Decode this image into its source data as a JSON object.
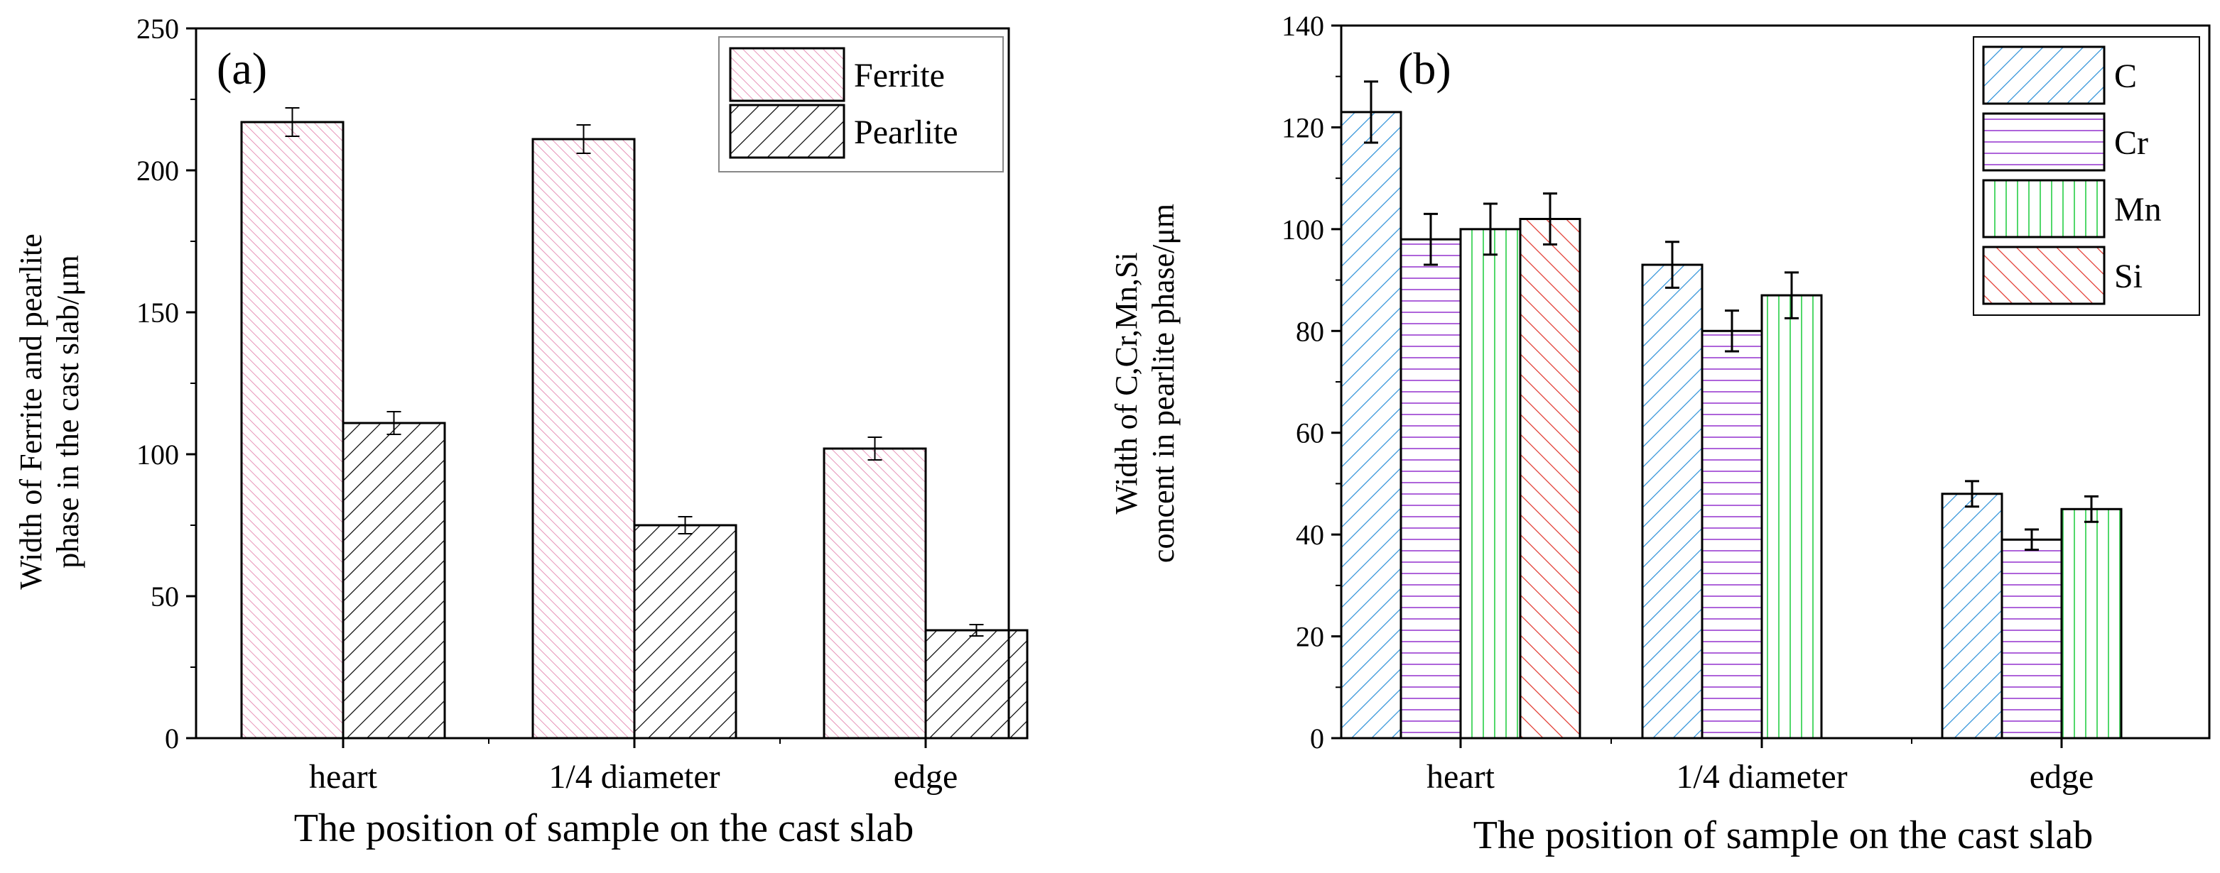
{
  "chart_data": [
    {
      "type": "bar",
      "panel_label": "(a)",
      "categories": [
        "heart",
        "1/4 diameter",
        "edge"
      ],
      "series": [
        {
          "name": "Ferrite",
          "values": [
            217,
            211,
            102
          ],
          "errors": [
            5,
            5,
            4
          ],
          "color": "#e27aa8",
          "pattern": "dense-diagonal-hatch"
        },
        {
          "name": "Pearlite",
          "values": [
            111,
            75,
            38
          ],
          "errors": [
            4,
            3,
            2
          ],
          "color": "#000000",
          "pattern": "diagonal-hatch"
        }
      ],
      "xlabel": "The position of sample on the cast slab",
      "ylabel_lines": [
        "Width of Ferrite and pearlite",
        "phase in the cast slab/μm"
      ],
      "ylim": [
        0,
        250
      ],
      "yticks": [
        0,
        50,
        100,
        150,
        200,
        250
      ],
      "legend": "top-right"
    },
    {
      "type": "bar",
      "panel_label": "(b)",
      "categories": [
        "heart",
        "1/4 diameter",
        "edge"
      ],
      "series": [
        {
          "name": "C",
          "values": [
            123,
            93,
            48
          ],
          "errors": [
            6,
            4.5,
            2.5
          ],
          "color": "#2a8fd8",
          "pattern": "diagonal-hatch"
        },
        {
          "name": "Cr",
          "values": [
            98,
            80,
            39
          ],
          "errors": [
            5,
            4,
            2
          ],
          "color": "#a552d6",
          "pattern": "horizontal-lines"
        },
        {
          "name": "Mn",
          "values": [
            100,
            87,
            45
          ],
          "errors": [
            5,
            4.5,
            2.5
          ],
          "color": "#3fd45a",
          "pattern": "vertical-lines"
        },
        {
          "name": "Si",
          "values": [
            102,
            null,
            null
          ],
          "errors": [
            5,
            null,
            null
          ],
          "color": "#e0342a",
          "pattern": "diagonal-hatch-reverse"
        }
      ],
      "xlabel": "The position of sample on the cast slab",
      "ylabel_lines": [
        "Width of C,Cr,Mn,Si",
        "concent in pearlite phase/μm"
      ],
      "ylim": [
        0,
        140
      ],
      "yticks": [
        0,
        20,
        40,
        60,
        80,
        100,
        120,
        140
      ],
      "legend": "top-right"
    }
  ]
}
